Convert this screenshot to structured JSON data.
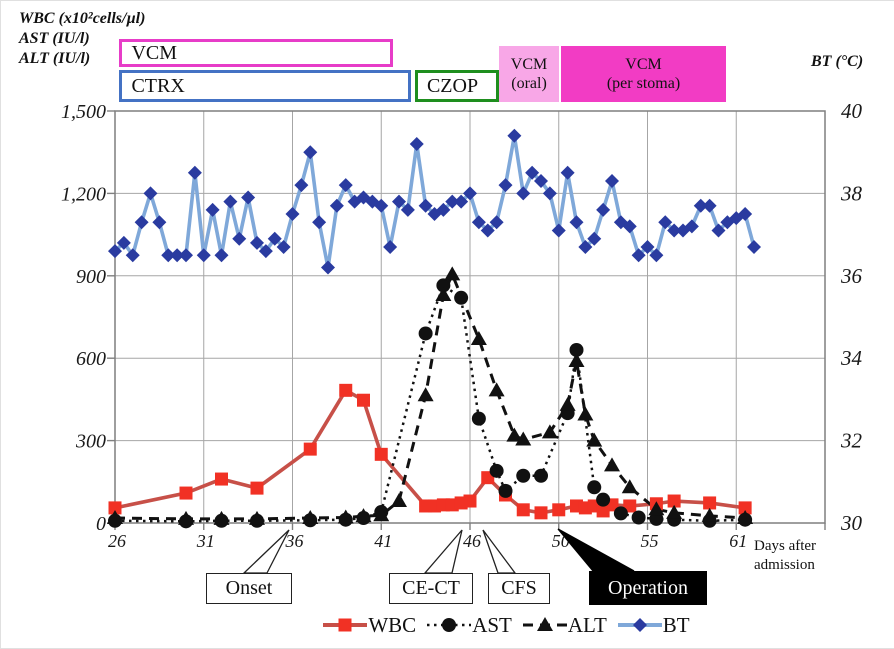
{
  "titles": {
    "left_lines": [
      "WBC (x10²cells/µl)",
      "AST (IU/l)",
      "ALT (IU/l)"
    ],
    "right": "BT (°C)"
  },
  "bars": [
    {
      "id": "vcm-iv",
      "label": "VCM",
      "sublabel": "",
      "u0": 0.5,
      "u1": 31.3,
      "row": "top",
      "style": "outline",
      "color": "#e73cc8"
    },
    {
      "id": "ctrx",
      "label": "CTRX",
      "sublabel": "",
      "u0": 0.5,
      "u1": 33.3,
      "row": "mid",
      "style": "outline",
      "color": "#4472c4"
    },
    {
      "id": "czop",
      "label": "CZOP",
      "sublabel": "",
      "u0": 33.8,
      "u1": 43.3,
      "row": "mid",
      "style": "outline",
      "color": "#1e8e1e"
    },
    {
      "id": "vcm-oral",
      "label": "VCM",
      "sublabel": "(oral)",
      "u0": 43.3,
      "u1": 50.0,
      "row": "tall",
      "style": "filled",
      "color": "#f8a7e7"
    },
    {
      "id": "vcm-stoma",
      "label": "VCM",
      "sublabel": "(per stoma)",
      "u0": 50.3,
      "u1": 68.8,
      "row": "tall",
      "style": "filled",
      "color": "#f23cc4"
    }
  ],
  "annotations": [
    {
      "id": "onset",
      "label": "Onset"
    },
    {
      "id": "cect",
      "label": "CE-CT"
    },
    {
      "id": "cfs",
      "label": "CFS"
    },
    {
      "id": "operation",
      "label": "Operation"
    }
  ],
  "legend": {
    "items": [
      {
        "label": "WBC"
      },
      {
        "label": "AST"
      },
      {
        "label": "ALT"
      },
      {
        "label": "BT"
      }
    ]
  },
  "chart_data": {
    "type": "line",
    "x_axis": {
      "label": "Days after admission",
      "tick_labels": [
        "26",
        "31",
        "36",
        "41",
        "46",
        "50",
        "55",
        "61"
      ],
      "tick_slots": [
        0,
        10,
        20,
        30,
        40,
        50,
        60,
        70
      ],
      "grid": true
    },
    "y_left": {
      "label": "WBC (x10²cells/µl) / AST (IU/l) / ALT (IU/l)",
      "ticks": [
        "0",
        "300",
        "600",
        "900",
        "1,200",
        "1,500"
      ],
      "range": [
        0,
        1500
      ]
    },
    "y_right": {
      "label": "BT (°C)",
      "ticks": [
        "30",
        "32",
        "34",
        "36",
        "38",
        "40"
      ],
      "range": [
        30,
        40
      ]
    },
    "series": [
      {
        "name": "WBC",
        "axis": "left",
        "marker": "square",
        "line": "solid",
        "line_color": "#c75048",
        "marker_color": "#f13124",
        "points": [
          [
            0,
            55
          ],
          [
            8,
            109
          ],
          [
            12,
            160
          ],
          [
            16,
            127
          ],
          [
            22,
            269
          ],
          [
            26,
            483
          ],
          [
            28,
            447
          ],
          [
            30,
            250
          ],
          [
            35,
            62
          ],
          [
            36,
            62
          ],
          [
            37,
            66
          ],
          [
            38,
            66
          ],
          [
            39,
            73
          ],
          [
            40,
            80
          ],
          [
            42,
            165
          ],
          [
            44,
            102
          ],
          [
            46,
            48
          ],
          [
            48,
            37
          ],
          [
            50,
            48
          ],
          [
            52,
            62
          ],
          [
            53,
            55
          ],
          [
            54,
            62
          ],
          [
            55,
            44
          ],
          [
            56,
            66
          ],
          [
            58,
            62
          ],
          [
            61,
            70
          ],
          [
            63,
            80
          ],
          [
            67,
            73
          ],
          [
            71,
            55
          ]
        ]
      },
      {
        "name": "AST",
        "axis": "left",
        "marker": "circle",
        "line": "dotted",
        "line_color": "#111111",
        "marker_color": "#111111",
        "points": [
          [
            0,
            8
          ],
          [
            8,
            6
          ],
          [
            12,
            8
          ],
          [
            16,
            8
          ],
          [
            22,
            10
          ],
          [
            26,
            12
          ],
          [
            28,
            18
          ],
          [
            30,
            40
          ],
          [
            35,
            690
          ],
          [
            37,
            865
          ],
          [
            39,
            820
          ],
          [
            41,
            380
          ],
          [
            43,
            190
          ],
          [
            44,
            117
          ],
          [
            46,
            172
          ],
          [
            48,
            172
          ],
          [
            51,
            400
          ],
          [
            52,
            630
          ],
          [
            54,
            130
          ],
          [
            55,
            85
          ],
          [
            57,
            35
          ],
          [
            59,
            20
          ],
          [
            61,
            15
          ],
          [
            63,
            12
          ],
          [
            67,
            8
          ],
          [
            71,
            12
          ]
        ]
      },
      {
        "name": "ALT",
        "axis": "left",
        "marker": "triangle",
        "line": "dashed",
        "line_color": "#111111",
        "marker_color": "#111111",
        "points": [
          [
            0,
            18
          ],
          [
            8,
            15
          ],
          [
            12,
            15
          ],
          [
            16,
            15
          ],
          [
            22,
            18
          ],
          [
            26,
            20
          ],
          [
            28,
            25
          ],
          [
            30,
            28
          ],
          [
            32,
            80
          ],
          [
            35,
            465
          ],
          [
            37,
            830
          ],
          [
            38,
            905
          ],
          [
            41,
            670
          ],
          [
            43,
            483
          ],
          [
            45,
            318
          ],
          [
            46,
            304
          ],
          [
            49,
            330
          ],
          [
            51,
            430
          ],
          [
            52,
            590
          ],
          [
            53,
            395
          ],
          [
            54,
            300
          ],
          [
            56,
            210
          ],
          [
            58,
            130
          ],
          [
            61,
            50
          ],
          [
            63,
            37
          ],
          [
            67,
            26
          ],
          [
            71,
            18
          ]
        ]
      },
      {
        "name": "BT",
        "axis": "right",
        "marker": "diamond",
        "line": "solid",
        "line_color": "#7fa8d9",
        "marker_color": "#2a3ba0",
        "u_start": 0,
        "u_step": 1,
        "values": [
          36.6,
          36.8,
          36.5,
          37.3,
          38.0,
          37.3,
          36.5,
          36.5,
          36.5,
          38.5,
          36.5,
          37.6,
          36.5,
          37.8,
          36.9,
          37.9,
          36.8,
          36.6,
          36.9,
          36.7,
          37.5,
          38.2,
          39.0,
          37.3,
          36.2,
          37.7,
          38.2,
          37.8,
          37.9,
          37.8,
          37.7,
          36.7,
          37.8,
          37.6,
          39.2,
          37.7,
          37.5,
          37.6,
          37.8,
          37.8,
          38.0,
          37.3,
          37.1,
          37.3,
          38.2,
          39.4,
          38.0,
          38.5,
          38.3,
          38.0,
          37.1,
          38.5,
          37.3,
          36.7,
          36.9,
          37.6,
          38.3,
          37.3,
          37.2,
          36.5,
          36.7,
          36.5,
          37.3,
          37.1,
          37.1,
          37.2,
          37.7,
          37.7,
          37.1,
          37.3,
          37.4,
          37.5,
          36.7
        ]
      }
    ],
    "colors": {
      "grid": "#a6a6a6",
      "plot_border": "#7f7f7f"
    }
  }
}
